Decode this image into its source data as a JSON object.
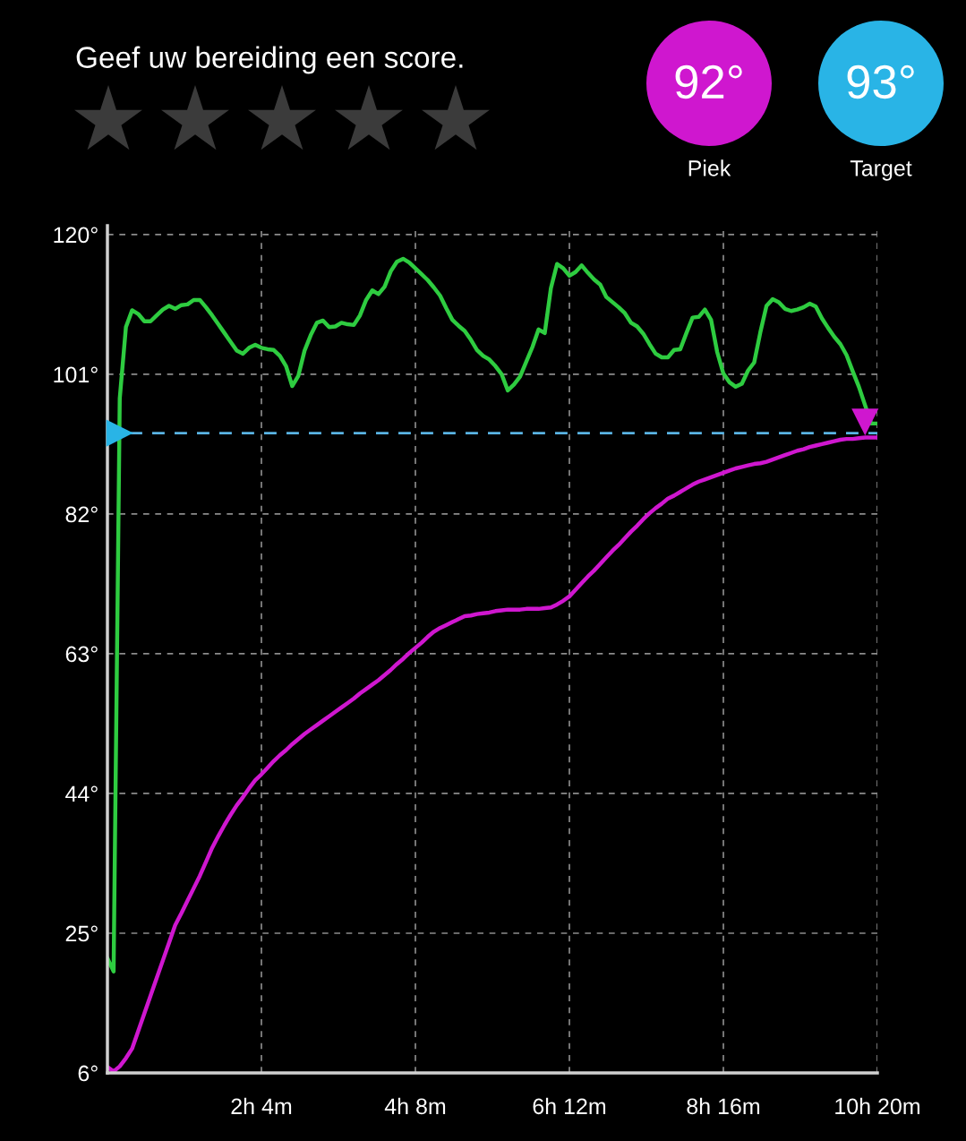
{
  "chart_data": {
    "type": "line",
    "annotations": [
      "Geef uw bereiding een score.",
      "92°",
      "Piek",
      "93°",
      "Target"
    ],
    "categories": [
      null,
      null,
      null,
      null,
      null,
      null,
      null,
      null,
      null,
      null,
      null,
      null,
      null,
      null,
      null,
      null,
      null,
      null,
      null,
      null,
      null,
      null,
      null,
      null,
      null,
      "2h 4m",
      null,
      null,
      null,
      null,
      null,
      null,
      null,
      null,
      null,
      null,
      null,
      null,
      null,
      null,
      null,
      null,
      null,
      null,
      null,
      null,
      null,
      null,
      null,
      null,
      "4h 8m",
      null,
      null,
      null,
      null,
      null,
      null,
      null,
      null,
      null,
      null,
      null,
      null,
      null,
      null,
      null,
      null,
      null,
      null,
      null,
      null,
      null,
      null,
      null,
      null,
      "6h 12m",
      null,
      null,
      null,
      null,
      null,
      null,
      null,
      null,
      null,
      null,
      null,
      null,
      null,
      null,
      null,
      null,
      null,
      null,
      null,
      null,
      null,
      null,
      null,
      null,
      "8h 16m",
      null,
      null,
      null,
      null,
      null,
      null,
      null,
      null,
      null,
      null,
      null,
      null,
      null,
      null,
      null,
      null,
      null,
      null,
      null,
      null,
      null,
      null,
      null,
      null,
      "10h 20m"
    ],
    "ylim": [
      6,
      121.2
    ],
    "yticks": [
      {
        "value": 6,
        "label": "6°"
      },
      {
        "value": 25,
        "label": "25°"
      },
      {
        "value": 44,
        "label": "44°"
      },
      {
        "value": 63,
        "label": "63°"
      },
      {
        "value": 82,
        "label": "82°"
      },
      {
        "value": 101,
        "label": "101°"
      },
      {
        "value": 120,
        "label": "120°"
      }
    ],
    "grid": true,
    "line_style": "solid",
    "series": [
      {
        "color": "#2ecc40",
        "values": [
          21.6,
          19.8,
          97.7,
          107.4,
          109.7,
          109.2,
          108.2,
          108.2,
          109.0,
          109.8,
          110.3,
          109.9,
          110.4,
          110.5,
          111.1,
          111.1,
          110.1,
          109.0,
          107.8,
          106.6,
          105.4,
          104.2,
          103.8,
          104.6,
          105.0,
          104.6,
          104.4,
          104.3,
          103.5,
          102.1,
          99.4,
          100.8,
          104.2,
          106.3,
          108.0,
          108.3,
          107.4,
          107.5,
          108.0,
          107.8,
          107.7,
          109.0,
          111.1,
          112.4,
          111.9,
          112.9,
          115.0,
          116.3,
          116.7,
          116.2,
          115.4,
          114.6,
          113.8,
          112.8,
          111.7,
          110.0,
          108.4,
          107.6,
          106.9,
          105.7,
          104.3,
          103.5,
          103.0,
          102.1,
          101.0,
          98.8,
          99.6,
          100.7,
          102.7,
          104.7,
          107.1,
          106.6,
          112.7,
          116.0,
          115.4,
          114.4,
          114.9,
          115.8,
          114.8,
          113.9,
          113.2,
          111.5,
          110.8,
          110.1,
          109.3,
          108.0,
          107.5,
          106.5,
          105.1,
          103.8,
          103.3,
          103.3,
          104.3,
          104.4,
          106.6,
          108.7,
          108.8,
          109.8,
          108.4,
          104.0,
          101.1,
          99.9,
          99.3,
          99.7,
          101.5,
          102.6,
          106.7,
          110.3,
          111.2,
          110.8,
          109.9,
          109.6,
          109.8,
          110.1,
          110.6,
          110.2,
          108.6,
          107.3,
          106.1,
          105.1,
          103.6,
          101.4,
          99.3,
          null,
          94.3,
          94.3
        ]
      },
      {
        "color": "#cf17cf",
        "values": [
          6.8,
          6.2,
          6.9,
          8.0,
          9.3,
          11.7,
          14.1,
          16.5,
          18.9,
          21.3,
          23.7,
          26.1,
          27.7,
          29.4,
          31.1,
          32.8,
          34.7,
          36.6,
          38.2,
          39.7,
          41.1,
          42.4,
          43.5,
          44.7,
          45.8,
          46.6,
          47.5,
          48.4,
          49.2,
          49.9,
          50.7,
          51.4,
          52.1,
          52.7,
          53.3,
          53.9,
          54.5,
          55.1,
          55.7,
          56.3,
          56.9,
          57.6,
          58.2,
          58.8,
          59.4,
          60.1,
          60.8,
          61.6,
          62.3,
          63.1,
          63.8,
          64.5,
          65.3,
          66.0,
          66.5,
          66.9,
          67.3,
          67.7,
          68.1,
          68.2,
          68.4,
          68.5,
          68.6,
          68.8,
          68.9,
          69.0,
          69.0,
          69.0,
          69.1,
          69.1,
          69.1,
          69.2,
          69.3,
          69.7,
          70.2,
          70.8,
          71.7,
          72.6,
          73.5,
          74.3,
          75.2,
          76.1,
          77.0,
          77.8,
          78.7,
          79.6,
          80.4,
          81.3,
          82.1,
          82.8,
          83.4,
          84.1,
          84.5,
          85.0,
          85.5,
          86.0,
          86.4,
          86.7,
          87.0,
          87.3,
          87.6,
          87.9,
          88.2,
          88.4,
          88.6,
          88.8,
          88.9,
          89.1,
          89.4,
          89.7,
          90.0,
          90.3,
          90.6,
          90.8,
          91.1,
          91.3,
          91.5,
          91.7,
          91.9,
          92.1,
          92.2,
          92.2,
          92.3,
          92.4,
          92.4,
          92.4
        ]
      },
      {
        "type": "scatter",
        "color": "#cf17cf",
        "marker": "triangle",
        "values": [
          null,
          null,
          null,
          null,
          null,
          null,
          null,
          null,
          null,
          null,
          null,
          null,
          null,
          null,
          null,
          null,
          null,
          null,
          null,
          null,
          null,
          null,
          null,
          null,
          null,
          null,
          null,
          null,
          null,
          null,
          null,
          null,
          null,
          null,
          null,
          null,
          null,
          null,
          null,
          null,
          null,
          null,
          null,
          null,
          null,
          null,
          null,
          null,
          null,
          null,
          null,
          null,
          null,
          null,
          null,
          null,
          null,
          null,
          null,
          null,
          null,
          null,
          null,
          null,
          null,
          null,
          null,
          null,
          null,
          null,
          null,
          null,
          null,
          null,
          null,
          null,
          null,
          null,
          null,
          null,
          null,
          null,
          null,
          null,
          null,
          null,
          null,
          null,
          null,
          null,
          null,
          null,
          null,
          null,
          null,
          null,
          null,
          null,
          null,
          null,
          null,
          null,
          null,
          null,
          null,
          null,
          null,
          null,
          null,
          null,
          null,
          null,
          null,
          null,
          null,
          null,
          null,
          null,
          null,
          null,
          null,
          null,
          null,
          94.5,
          null,
          null
        ]
      },
      {
        "type": "scatter",
        "color": "#29b4e6",
        "marker": "triangle",
        "values": [
          null,
          null,
          93,
          null,
          null,
          null,
          null,
          null,
          null,
          null,
          null,
          null,
          null,
          null,
          null,
          null,
          null,
          null,
          null,
          null,
          null,
          null,
          null,
          null,
          null,
          null,
          null,
          null,
          null,
          null,
          null,
          null,
          null,
          null,
          null,
          null,
          null,
          null,
          null,
          null,
          null,
          null,
          null,
          null,
          null,
          null,
          null,
          null,
          null,
          null,
          null,
          null,
          null,
          null,
          null,
          null,
          null,
          null,
          null,
          null,
          null,
          null,
          null,
          null,
          null,
          null,
          null,
          null,
          null,
          null,
          null,
          null,
          null,
          null,
          null,
          null,
          null,
          null,
          null,
          null,
          null,
          null,
          null,
          null,
          null,
          null,
          null,
          null,
          null,
          null,
          null,
          null,
          null,
          null,
          null,
          null,
          null,
          null,
          null,
          null,
          null,
          null,
          null,
          null,
          null,
          null,
          null,
          null,
          null,
          null,
          null,
          null,
          null,
          null,
          null,
          null,
          null,
          null,
          null,
          null,
          null,
          null,
          null,
          null,
          null,
          null
        ]
      }
    ],
    "ref_lines": [
      {
        "axis": "y",
        "value": 93,
        "color": "#5ab4e4",
        "line_style": "dashed"
      }
    ]
  }
}
